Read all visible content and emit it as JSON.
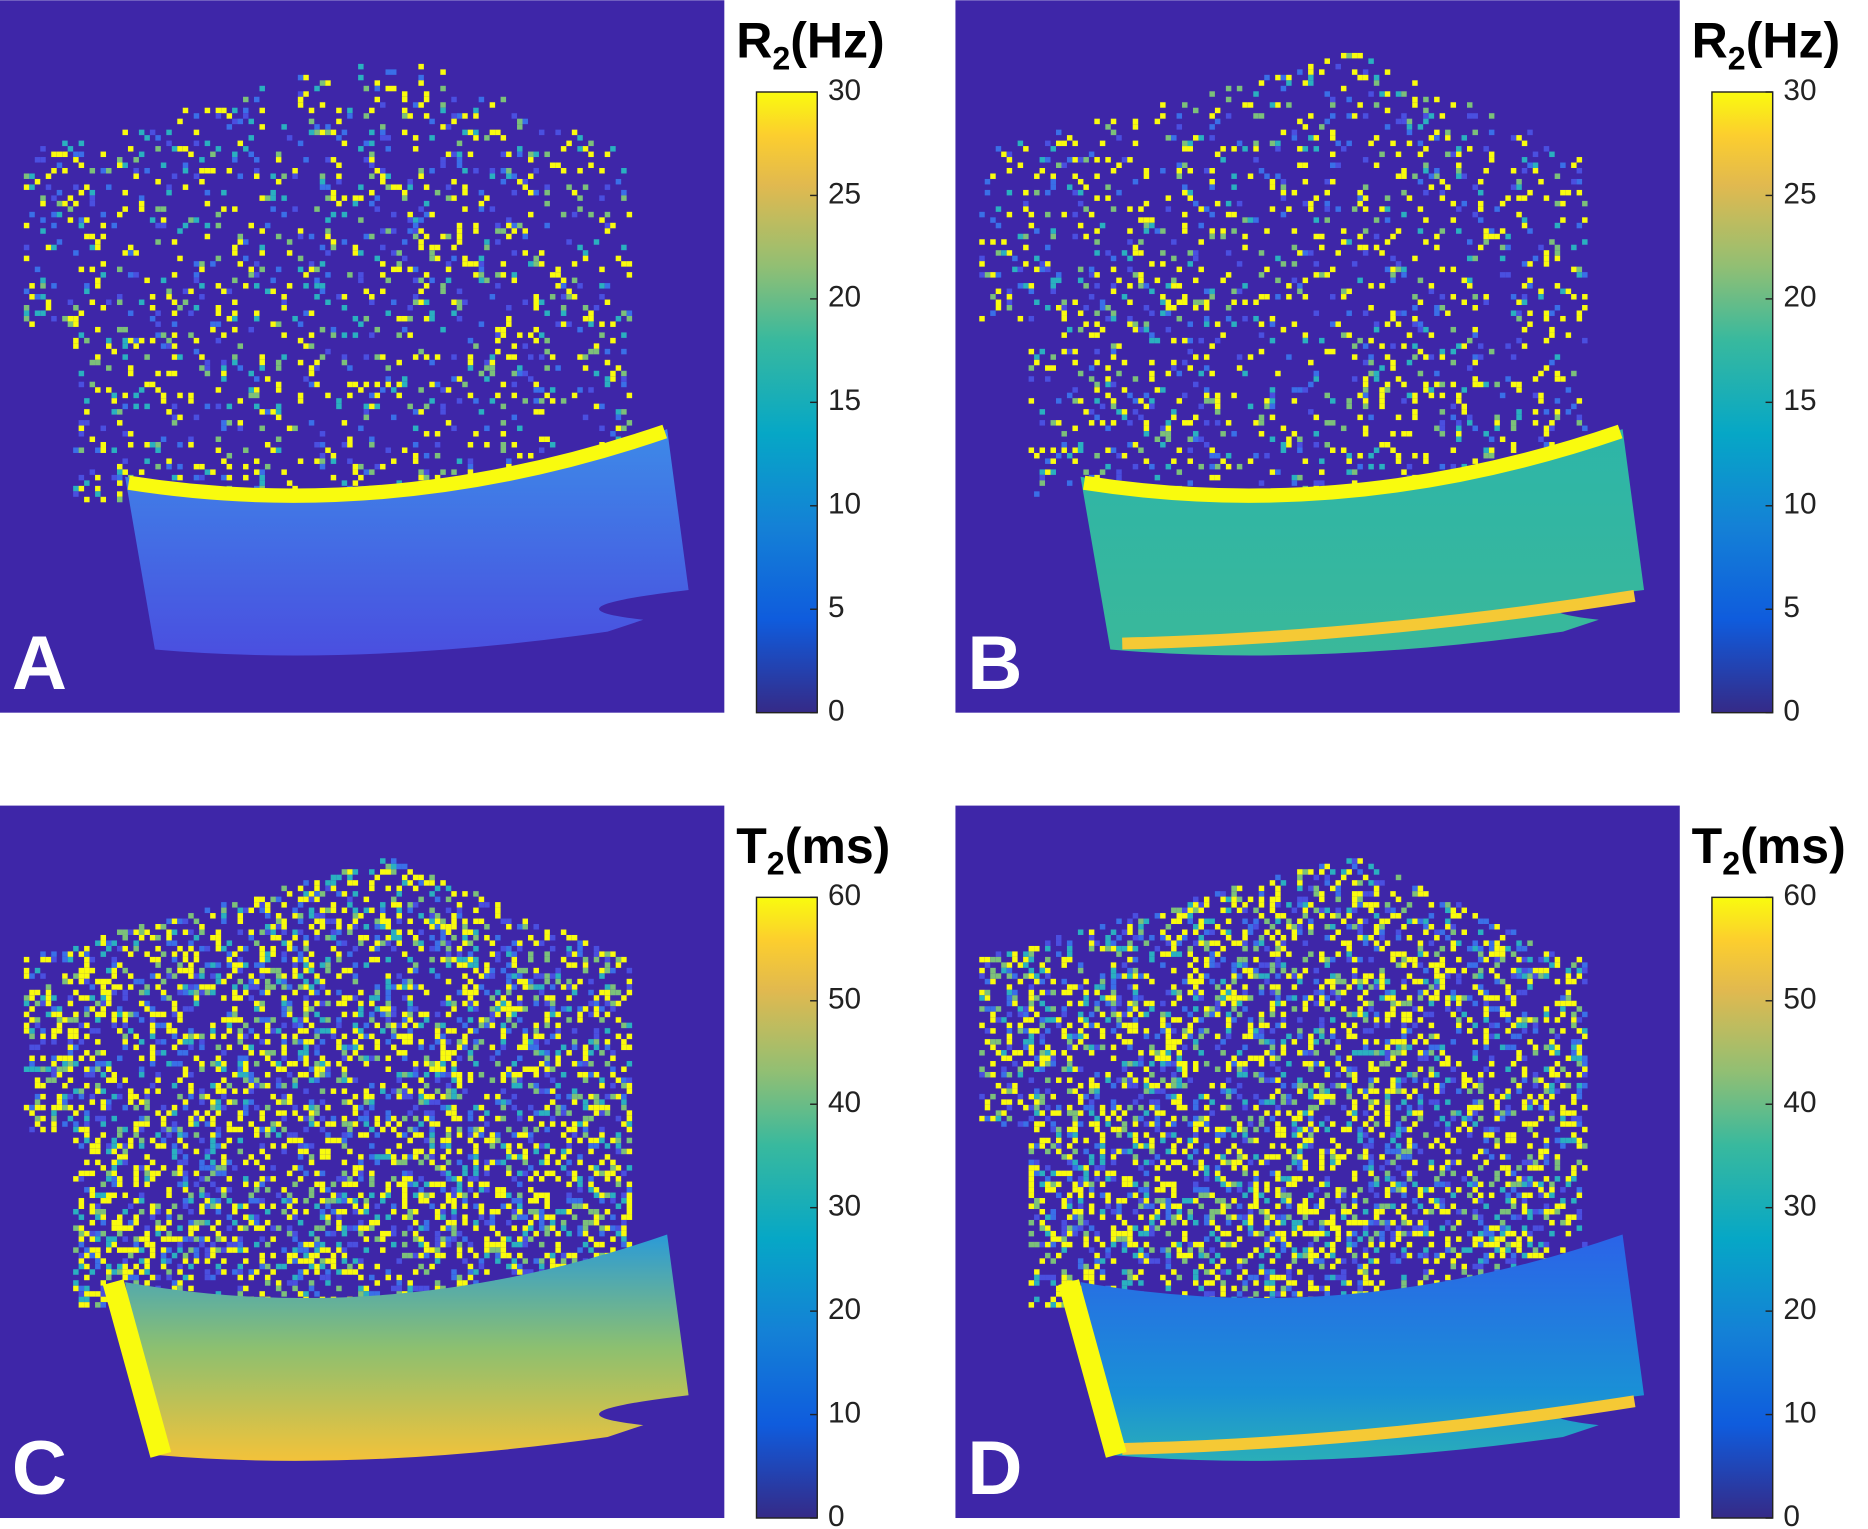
{
  "panels": [
    {
      "letter": "A",
      "colorbar": {
        "title": {
          "symbol": "R",
          "subscript": "2",
          "unit": "(Hz)"
        },
        "lim": [
          0,
          30
        ],
        "ticks": [
          0,
          5,
          10,
          15,
          20,
          25,
          30
        ]
      }
    },
    {
      "letter": "B",
      "colorbar": {
        "title": {
          "symbol": "R",
          "subscript": "2",
          "unit": "(Hz)"
        },
        "lim": [
          0,
          30
        ],
        "ticks": [
          0,
          5,
          10,
          15,
          20,
          25,
          30
        ]
      }
    },
    {
      "letter": "C",
      "colorbar": {
        "title": {
          "symbol": "T",
          "subscript": "2",
          "unit": "(ms)"
        },
        "lim": [
          0,
          60
        ],
        "ticks": [
          0,
          10,
          20,
          30,
          40,
          50,
          60
        ]
      }
    },
    {
      "letter": "D",
      "colorbar": {
        "title": {
          "symbol": "T",
          "subscript": "2",
          "unit": "(ms)"
        },
        "lim": [
          0,
          60
        ],
        "ticks": [
          0,
          10,
          20,
          30,
          40,
          50,
          60
        ]
      }
    }
  ]
}
